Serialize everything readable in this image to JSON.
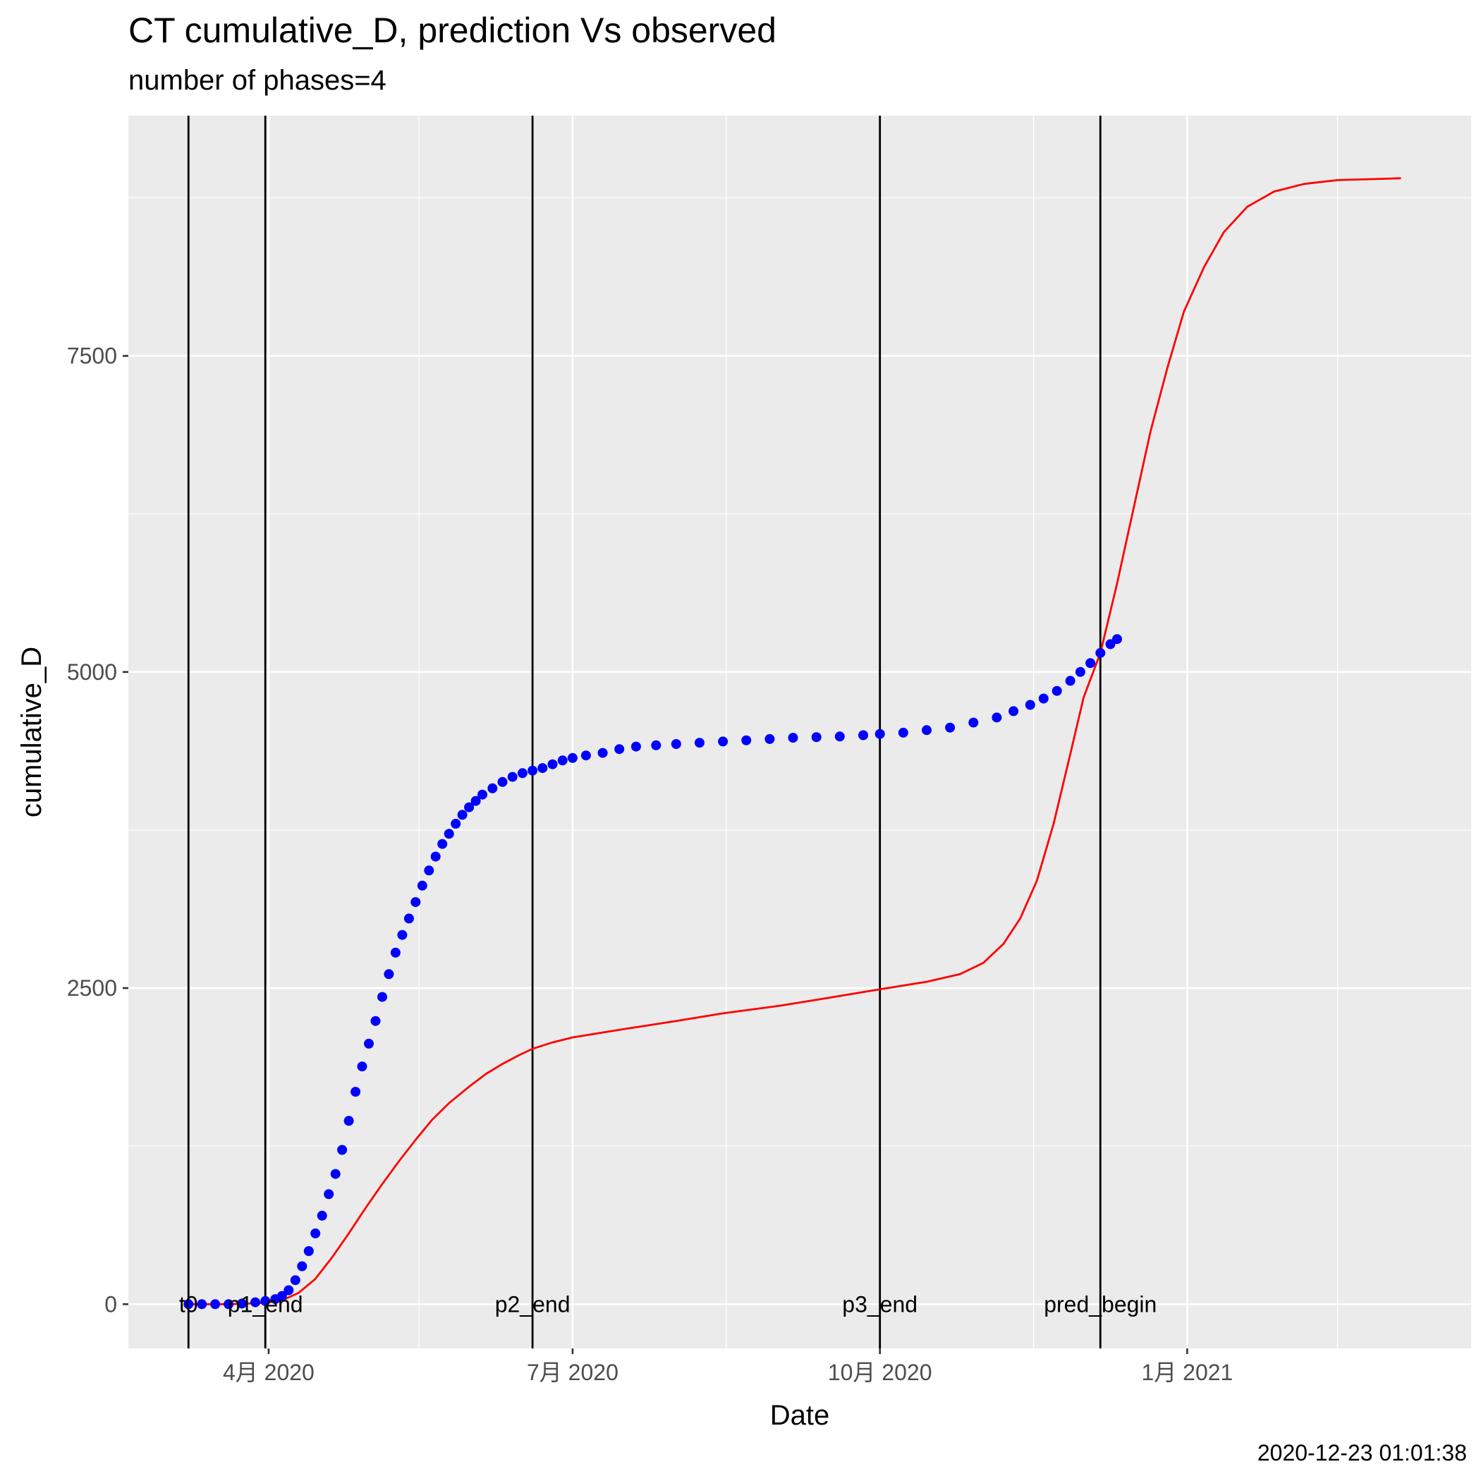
{
  "title": "CT cumulative_D,  prediction Vs observed",
  "subtitle": "number of phases=4",
  "caption": "2020-12-23 01:01:38",
  "colors": {
    "panel_background": "#ebebeb",
    "grid": "#ffffff",
    "observed": "#0000ff",
    "prediction": "#ff0000",
    "vlines": "#000000"
  },
  "chart_data": {
    "type": "line",
    "xlabel": "Date",
    "ylabel": "cumulative_D",
    "xlim": [
      "2020-02-19",
      "2021-03-27"
    ],
    "ylim": [
      -350,
      9400
    ],
    "grid": true,
    "x_ticks": [
      {
        "date": "2020-04-01",
        "label": "4月 2020"
      },
      {
        "date": "2020-07-01",
        "label": "7月 2020"
      },
      {
        "date": "2020-10-01",
        "label": "10月 2020"
      },
      {
        "date": "2021-01-01",
        "label": "1月 2021"
      }
    ],
    "x_minor_ticks": [
      "2020-02-15",
      "2020-05-16",
      "2020-08-16",
      "2020-11-16",
      "2021-02-15"
    ],
    "y_ticks": [
      0,
      2500,
      5000,
      7500
    ],
    "y_minor_ticks": [
      1250,
      3750,
      6250,
      8750
    ],
    "vlines": [
      {
        "date": "2020-03-08",
        "label": "t0"
      },
      {
        "date": "2020-03-31",
        "label": "p1_end"
      },
      {
        "date": "2020-06-19",
        "label": "p2_end"
      },
      {
        "date": "2020-10-01",
        "label": "p3_end"
      },
      {
        "date": "2020-12-06",
        "label": "pred_begin"
      }
    ],
    "series": [
      {
        "kind": "points",
        "points": [
          [
            "2020-03-08",
            0
          ],
          [
            "2020-03-12",
            0
          ],
          [
            "2020-03-16",
            0
          ],
          [
            "2020-03-20",
            0
          ],
          [
            "2020-03-24",
            5
          ],
          [
            "2020-03-28",
            15
          ],
          [
            "2020-03-31",
            25
          ],
          [
            "2020-04-03",
            40
          ],
          [
            "2020-04-05",
            65
          ],
          [
            "2020-04-07",
            110
          ],
          [
            "2020-04-09",
            190
          ],
          [
            "2020-04-11",
            300
          ],
          [
            "2020-04-13",
            420
          ],
          [
            "2020-04-15",
            560
          ],
          [
            "2020-04-17",
            700
          ],
          [
            "2020-04-19",
            870
          ],
          [
            "2020-04-21",
            1030
          ],
          [
            "2020-04-23",
            1220
          ],
          [
            "2020-04-25",
            1450
          ],
          [
            "2020-04-27",
            1680
          ],
          [
            "2020-04-29",
            1880
          ],
          [
            "2020-05-01",
            2060
          ],
          [
            "2020-05-03",
            2240
          ],
          [
            "2020-05-05",
            2430
          ],
          [
            "2020-05-07",
            2610
          ],
          [
            "2020-05-09",
            2780
          ],
          [
            "2020-05-11",
            2920
          ],
          [
            "2020-05-13",
            3050
          ],
          [
            "2020-05-15",
            3180
          ],
          [
            "2020-05-17",
            3310
          ],
          [
            "2020-05-19",
            3430
          ],
          [
            "2020-05-21",
            3540
          ],
          [
            "2020-05-23",
            3640
          ],
          [
            "2020-05-25",
            3720
          ],
          [
            "2020-05-27",
            3800
          ],
          [
            "2020-05-29",
            3870
          ],
          [
            "2020-05-31",
            3930
          ],
          [
            "2020-06-02",
            3980
          ],
          [
            "2020-06-04",
            4030
          ],
          [
            "2020-06-07",
            4080
          ],
          [
            "2020-06-10",
            4130
          ],
          [
            "2020-06-13",
            4170
          ],
          [
            "2020-06-16",
            4200
          ],
          [
            "2020-06-19",
            4220
          ],
          [
            "2020-06-22",
            4240
          ],
          [
            "2020-06-25",
            4270
          ],
          [
            "2020-06-28",
            4300
          ],
          [
            "2020-07-01",
            4320
          ],
          [
            "2020-07-05",
            4340
          ],
          [
            "2020-07-10",
            4360
          ],
          [
            "2020-07-15",
            4390
          ],
          [
            "2020-07-20",
            4410
          ],
          [
            "2020-07-26",
            4420
          ],
          [
            "2020-08-01",
            4430
          ],
          [
            "2020-08-08",
            4440
          ],
          [
            "2020-08-15",
            4450
          ],
          [
            "2020-08-22",
            4460
          ],
          [
            "2020-08-29",
            4470
          ],
          [
            "2020-09-05",
            4480
          ],
          [
            "2020-09-12",
            4485
          ],
          [
            "2020-09-19",
            4490
          ],
          [
            "2020-09-26",
            4500
          ],
          [
            "2020-10-01",
            4510
          ],
          [
            "2020-10-08",
            4520
          ],
          [
            "2020-10-15",
            4540
          ],
          [
            "2020-10-22",
            4560
          ],
          [
            "2020-10-29",
            4600
          ],
          [
            "2020-11-05",
            4640
          ],
          [
            "2020-11-10",
            4690
          ],
          [
            "2020-11-15",
            4740
          ],
          [
            "2020-11-19",
            4790
          ],
          [
            "2020-11-23",
            4850
          ],
          [
            "2020-11-27",
            4930
          ],
          [
            "2020-11-30",
            5000
          ],
          [
            "2020-12-03",
            5070
          ],
          [
            "2020-12-06",
            5150
          ],
          [
            "2020-12-09",
            5220
          ],
          [
            "2020-12-11",
            5260
          ]
        ]
      },
      {
        "kind": "line",
        "points": [
          [
            "2020-03-08",
            0
          ],
          [
            "2020-03-20",
            0
          ],
          [
            "2020-03-31",
            10
          ],
          [
            "2020-04-05",
            30
          ],
          [
            "2020-04-10",
            90
          ],
          [
            "2020-04-15",
            200
          ],
          [
            "2020-04-20",
            370
          ],
          [
            "2020-04-25",
            560
          ],
          [
            "2020-04-30",
            760
          ],
          [
            "2020-05-05",
            950
          ],
          [
            "2020-05-10",
            1130
          ],
          [
            "2020-05-15",
            1300
          ],
          [
            "2020-05-20",
            1460
          ],
          [
            "2020-05-25",
            1590
          ],
          [
            "2020-05-31",
            1720
          ],
          [
            "2020-06-05",
            1820
          ],
          [
            "2020-06-10",
            1900
          ],
          [
            "2020-06-15",
            1970
          ],
          [
            "2020-06-19",
            2020
          ],
          [
            "2020-06-25",
            2070
          ],
          [
            "2020-07-01",
            2110
          ],
          [
            "2020-07-15",
            2170
          ],
          [
            "2020-08-01",
            2240
          ],
          [
            "2020-08-15",
            2300
          ],
          [
            "2020-09-01",
            2360
          ],
          [
            "2020-09-15",
            2420
          ],
          [
            "2020-10-01",
            2490
          ],
          [
            "2020-10-15",
            2550
          ],
          [
            "2020-10-25",
            2610
          ],
          [
            "2020-11-01",
            2700
          ],
          [
            "2020-11-07",
            2850
          ],
          [
            "2020-11-12",
            3050
          ],
          [
            "2020-11-17",
            3350
          ],
          [
            "2020-11-22",
            3800
          ],
          [
            "2020-11-27",
            4350
          ],
          [
            "2020-12-01",
            4800
          ],
          [
            "2020-12-06",
            5150
          ],
          [
            "2020-12-11",
            5700
          ],
          [
            "2020-12-16",
            6300
          ],
          [
            "2020-12-21",
            6900
          ],
          [
            "2020-12-26",
            7400
          ],
          [
            "2020-12-31",
            7850
          ],
          [
            "2021-01-06",
            8200
          ],
          [
            "2021-01-12",
            8480
          ],
          [
            "2021-01-19",
            8680
          ],
          [
            "2021-01-27",
            8800
          ],
          [
            "2021-02-05",
            8860
          ],
          [
            "2021-02-15",
            8890
          ],
          [
            "2021-02-28",
            8900
          ],
          [
            "2021-03-06",
            8905
          ]
        ]
      }
    ]
  }
}
